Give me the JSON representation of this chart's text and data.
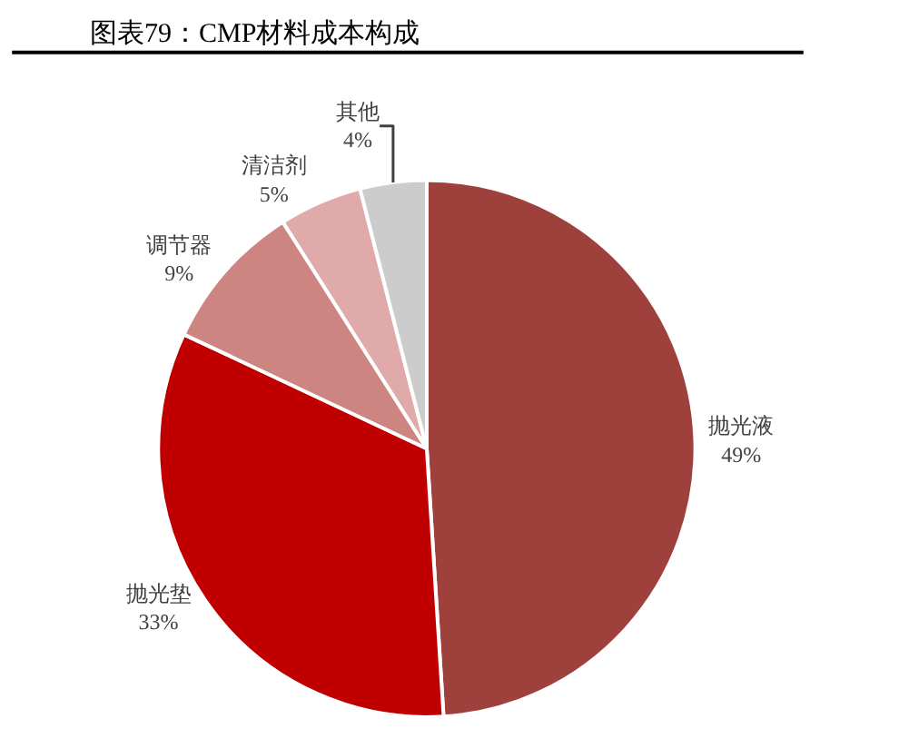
{
  "chart_data": {
    "type": "pie",
    "title": "图表79：CMP材料成本构成",
    "categories": [
      "抛光液",
      "抛光垫",
      "调节器",
      "清洁剂",
      "其他"
    ],
    "values": [
      49,
      33,
      9,
      5,
      4
    ],
    "value_labels": [
      "49%",
      "33%",
      "9%",
      "5%",
      "4%"
    ],
    "colors": [
      "#9e403b",
      "#c00000",
      "#cd8581",
      "#dfaaa9",
      "#cccccc"
    ],
    "legend": false
  }
}
